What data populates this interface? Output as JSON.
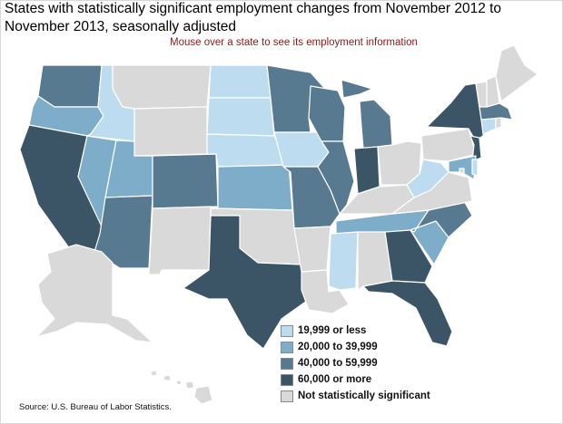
{
  "title": "States with statistically significant employment changes from November 2012 to November 2013, seasonally adjusted",
  "subtitle": "Mouse over a state to see its employment information",
  "source": "Source: U.S. Bureau of Labor Statistics.",
  "colors": {
    "cat1": "#bddcef",
    "cat2": "#7eadc9",
    "cat3": "#587a90",
    "cat4": "#3c5566",
    "none": "#d9d9d9"
  },
  "legend": [
    {
      "key": "cat1",
      "label": "19,999 or less"
    },
    {
      "key": "cat2",
      "label": "20,000 to 39,999"
    },
    {
      "key": "cat3",
      "label": "40,000 to 59,999"
    },
    {
      "key": "cat4",
      "label": "60,000 or more"
    },
    {
      "key": "none",
      "label": "Not statistically significant"
    }
  ],
  "states": {
    "WA": "cat3",
    "OR": "cat2",
    "ID": "cat1",
    "MT": "none",
    "WY": "none",
    "CA": "cat4",
    "NV": "cat2",
    "UT": "cat2",
    "AZ": "cat3",
    "CO": "cat3",
    "NM": "none",
    "ND": "cat1",
    "SD": "cat1",
    "NE": "cat1",
    "KS": "cat2",
    "OK": "none",
    "TX": "cat4",
    "MN": "cat3",
    "IA": "cat1",
    "MO": "cat3",
    "AR": "none",
    "LA": "none",
    "WI": "cat3",
    "IL": "cat3",
    "MI": "cat3",
    "IN": "cat4",
    "OH": "none",
    "KY": "none",
    "TN": "cat2",
    "MS": "cat1",
    "AL": "none",
    "GA": "cat4",
    "FL": "cat4",
    "SC": "cat2",
    "NC": "cat3",
    "VA": "none",
    "WV": "cat1",
    "PA": "none",
    "NY": "cat4",
    "NJ": "cat4",
    "MD": "cat2",
    "DE": "cat1",
    "DC": "none",
    "CT": "cat1",
    "RI": "none",
    "MA": "cat3",
    "VT": "none",
    "NH": "none",
    "ME": "none",
    "AK": "none",
    "HI": "none"
  }
}
